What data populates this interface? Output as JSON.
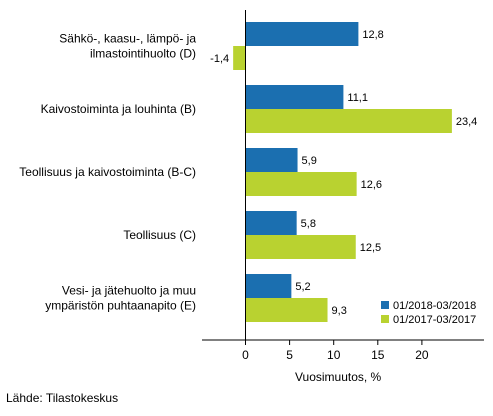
{
  "chart_data": {
    "type": "bar",
    "orientation": "horizontal",
    "categories": [
      [
        "Sähkö-, kaasu-, lämpö- ja",
        "ilmastointihuolto (D)"
      ],
      [
        "Kaivostoiminta ja louhinta (B)"
      ],
      [
        "Teollisuus ja kaivostoiminta (B-C)"
      ],
      [
        "Teollisuus (C)"
      ],
      [
        "Vesi- ja jätehuolto ja muu",
        "ympäristön puhtaanapito (E)"
      ]
    ],
    "series": [
      {
        "name": "01/2018-03/2018",
        "color": "#1B6FB0",
        "values": [
          12.8,
          11.1,
          5.9,
          5.8,
          5.2
        ],
        "labels": [
          "12,8",
          "11,1",
          "5,9",
          "5,8",
          "5,2"
        ]
      },
      {
        "name": "01/2017-03/2017",
        "color": "#B9D230",
        "values": [
          -1.4,
          23.4,
          12.6,
          12.5,
          9.3
        ],
        "labels": [
          "-1,4",
          "23,4",
          "12,6",
          "12,5",
          "9,3"
        ]
      }
    ],
    "xlim": [
      -5,
      27
    ],
    "ticks": [
      0,
      5,
      10,
      15,
      20
    ],
    "tick_labels": [
      "0",
      "5",
      "10",
      "15",
      "20"
    ],
    "xlabel": "Vuosimuutos, %",
    "grid": false,
    "legend_position": "bottom-right"
  },
  "source_text": "Lähde: Tilastokeskus"
}
